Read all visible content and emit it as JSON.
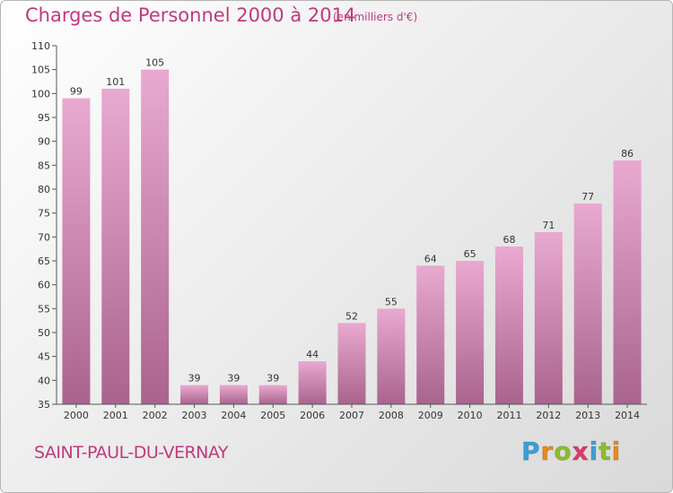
{
  "header": {
    "title": "Charges de Personnel 2000 à 2014",
    "subtitle": "(en milliers d'€)"
  },
  "footer": {
    "place": "SAINT-PAUL-DU-VERNAY",
    "logo_letters": [
      "P",
      "r",
      "o",
      "x",
      "i",
      "t",
      "i"
    ],
    "logo_colors": [
      "#3aa0d8",
      "#e88a1f",
      "#8bbf2a",
      "#e23a6d",
      "#3aa0d8",
      "#8bbf2a",
      "#e88a1f"
    ]
  },
  "colors": {
    "accent": "#c0397f",
    "bar_top": "#e9a9d0",
    "bar_bottom": "#a9648e"
  },
  "chart_data": {
    "type": "bar",
    "title": "Charges de Personnel 2000 à 2014",
    "subtitle": "(en milliers d'€)",
    "categories": [
      "2000",
      "2001",
      "2002",
      "2003",
      "2004",
      "2005",
      "2006",
      "2007",
      "2008",
      "2009",
      "2010",
      "2011",
      "2012",
      "2013",
      "2014"
    ],
    "values": [
      99,
      101,
      105,
      39,
      39,
      39,
      44,
      52,
      55,
      64,
      65,
      68,
      71,
      77,
      86
    ],
    "ylim": [
      35,
      110
    ],
    "yticks": [
      35,
      40,
      45,
      50,
      55,
      60,
      65,
      70,
      75,
      80,
      85,
      90,
      95,
      100,
      105,
      110
    ],
    "grid": false,
    "xlabel": "",
    "ylabel": ""
  }
}
